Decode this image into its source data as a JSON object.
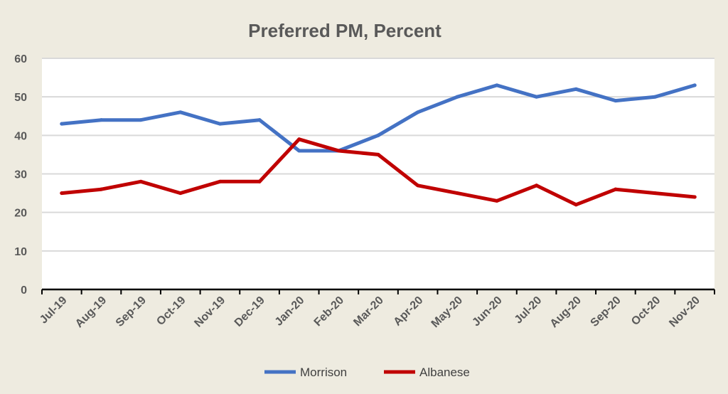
{
  "chart_data": {
    "type": "line",
    "title": "Preferred PM, Percent",
    "xlabel": "",
    "ylabel": "",
    "ylim": [
      0,
      60
    ],
    "yticks": [
      0,
      10,
      20,
      30,
      40,
      50,
      60
    ],
    "grid": true,
    "legend_position": "bottom",
    "categories": [
      "Jul-19",
      "Aug-19",
      "Sep-19",
      "Oct-19",
      "Nov-19",
      "Dec-19",
      "Jan-20",
      "Feb-20",
      "Mar-20",
      "Apr-20",
      "May-20",
      "Jun-20",
      "Jul-20",
      "Aug-20",
      "Sep-20",
      "Oct-20",
      "Nov-20"
    ],
    "series": [
      {
        "name": "Morrison",
        "color": "#4472c4",
        "values": [
          43,
          44,
          44,
          46,
          43,
          44,
          36,
          36,
          40,
          46,
          50,
          53,
          50,
          52,
          49,
          50,
          53
        ]
      },
      {
        "name": "Albanese",
        "color": "#c00000",
        "values": [
          25,
          26,
          28,
          25,
          28,
          28,
          39,
          36,
          35,
          27,
          25,
          23,
          27,
          22,
          26,
          25,
          24
        ]
      }
    ]
  }
}
